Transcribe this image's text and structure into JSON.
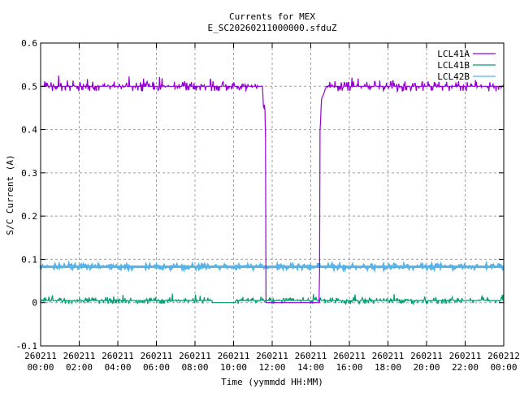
{
  "chart_data": {
    "type": "line",
    "title": "Currents for MEX",
    "subtitle": "E_SC20260211000000.sfduZ",
    "xlabel": "Time (yymmdd HH:MM)",
    "ylabel": "S/C Current (A)",
    "xlim_hours": [
      0,
      24
    ],
    "ylim": [
      -0.1,
      0.6
    ],
    "grid": true,
    "legend_position": "top-right",
    "yticks": [
      -0.1,
      0,
      0.1,
      0.2,
      0.3,
      0.4,
      0.5,
      0.6
    ],
    "ytick_labels": [
      "-0.1",
      "0",
      "0.1",
      "0.2",
      "0.3",
      "0.4",
      "0.5",
      "0.6"
    ],
    "xticks_hours": [
      0,
      2,
      4,
      6,
      8,
      10,
      12,
      14,
      16,
      18,
      20,
      22,
      24
    ],
    "xtick_labels": [
      [
        "260211",
        "00:00"
      ],
      [
        "260211",
        "02:00"
      ],
      [
        "260211",
        "04:00"
      ],
      [
        "260211",
        "06:00"
      ],
      [
        "260211",
        "08:00"
      ],
      [
        "260211",
        "10:00"
      ],
      [
        "260211",
        "12:00"
      ],
      [
        "260211",
        "14:00"
      ],
      [
        "260211",
        "16:00"
      ],
      [
        "260211",
        "18:00"
      ],
      [
        "260211",
        "20:00"
      ],
      [
        "260211",
        "22:00"
      ],
      [
        "260212",
        "00:00"
      ]
    ],
    "series": [
      {
        "name": "LCL41A",
        "color": "#9400d3",
        "noise": 0.012,
        "points": [
          [
            0,
            0.5
          ],
          [
            11.5,
            0.5
          ],
          [
            11.55,
            0.45
          ],
          [
            11.65,
            0.45
          ],
          [
            11.67,
            0
          ],
          [
            14.45,
            0
          ],
          [
            14.47,
            0.39
          ],
          [
            14.5,
            0.41
          ],
          [
            14.55,
            0.47
          ],
          [
            14.65,
            0.48
          ],
          [
            14.8,
            0.5
          ],
          [
            24,
            0.5
          ]
        ]
      },
      {
        "name": "LCL41B",
        "color": "#009e73",
        "noise": 0.008,
        "points": [
          [
            0,
            0.005
          ],
          [
            8.9,
            0.005
          ],
          [
            8.9,
            0
          ],
          [
            10.1,
            0
          ],
          [
            10.1,
            0.005
          ],
          [
            24,
            0.005
          ]
        ]
      },
      {
        "name": "LCL42B",
        "color": "#56b4e9",
        "noise": 0.004,
        "points": [
          [
            0,
            0.083
          ],
          [
            24,
            0.083
          ]
        ]
      }
    ]
  }
}
